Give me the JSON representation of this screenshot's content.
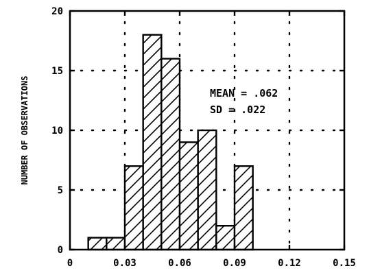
{
  "chart_data": {
    "type": "bar",
    "subtype": "histogram",
    "bin_width": 0.01,
    "bins": [
      {
        "x0": 0.01,
        "x1": 0.02,
        "count": 1
      },
      {
        "x0": 0.02,
        "x1": 0.03,
        "count": 1
      },
      {
        "x0": 0.03,
        "x1": 0.04,
        "count": 7
      },
      {
        "x0": 0.04,
        "x1": 0.05,
        "count": 18
      },
      {
        "x0": 0.05,
        "x1": 0.06,
        "count": 16
      },
      {
        "x0": 0.06,
        "x1": 0.07,
        "count": 9
      },
      {
        "x0": 0.07,
        "x1": 0.08,
        "count": 10
      },
      {
        "x0": 0.08,
        "x1": 0.09,
        "count": 2
      },
      {
        "x0": 0.09,
        "x1": 0.1,
        "count": 7
      }
    ],
    "xlim": [
      0,
      0.15
    ],
    "ylim": [
      0,
      20
    ],
    "x_ticks": [
      0,
      0.03,
      0.06,
      0.09,
      0.12,
      0.15
    ],
    "x_tick_labels": [
      "0",
      "0.03",
      "0.06",
      "0.09",
      "0.12",
      "0.15"
    ],
    "y_ticks": [
      0,
      5,
      10,
      15,
      20
    ],
    "y_tick_labels": [
      "0",
      "5",
      "10",
      "15",
      "20"
    ],
    "xlabel": "",
    "ylabel": "NUMBER OF OBSERVATIONS",
    "grid": "dotted",
    "bar_fill": "diagonal-hatch",
    "annotations": [
      "MEAN = .062",
      "SD = .022"
    ],
    "colors": {
      "ink": "#000000",
      "background": "#ffffff"
    }
  }
}
